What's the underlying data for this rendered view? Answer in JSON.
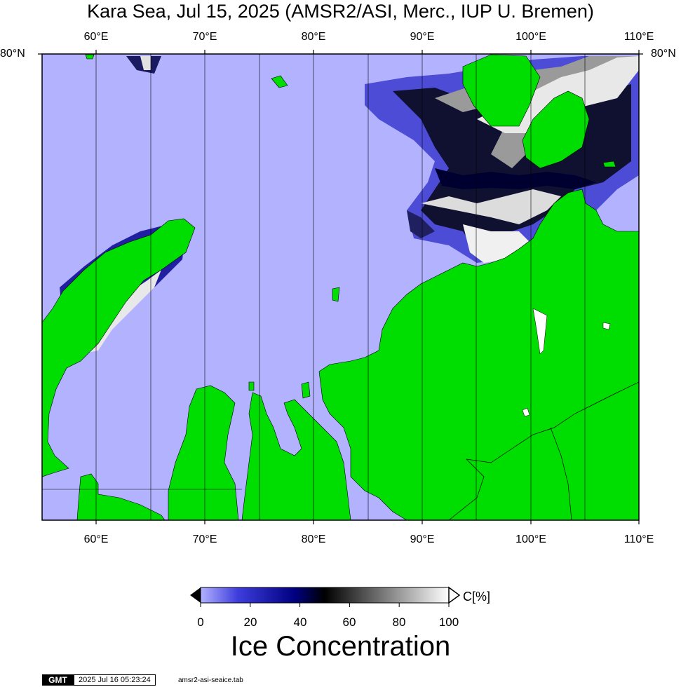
{
  "title": "Kara Sea, Jul 15, 2025 (AMSR2/ASI, Merc., IUP U. Bremen)",
  "top_longitude_labels": [
    "60°E",
    "70°E",
    "80°E",
    "90°E",
    "100°E",
    "110°E"
  ],
  "bottom_longitude_labels": [
    "60°E",
    "70°E",
    "80°E",
    "90°E",
    "100°E",
    "110°E"
  ],
  "latitude_label_left": "80°N",
  "latitude_label_right": "80°N",
  "colors": {
    "open_water": "#b2b2ff",
    "land": "#00dd00",
    "frame": "#000000"
  },
  "colorbar": {
    "title": "Ice Concentration",
    "unit_label": "C[%]",
    "ticks": [
      "0",
      "20",
      "40",
      "60",
      "80",
      "100"
    ],
    "gradient": [
      "#b2b2ff",
      "#3d3ddd",
      "#000080",
      "#000000",
      "#808080",
      "#ffffff"
    ]
  },
  "footer": {
    "logo": "GMT",
    "timestamp": "2025 Jul 16 05:23:24",
    "source_file": "amsr2-asi-seaice.tab"
  }
}
